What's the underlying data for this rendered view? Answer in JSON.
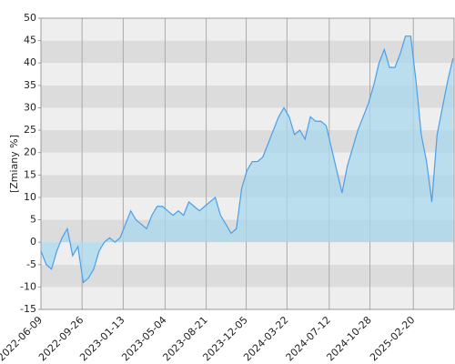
{
  "chart_data": {
    "type": "area",
    "y_label": "[Zmiany %]",
    "x": [
      "2022-06-09",
      "2022-06-23",
      "2022-07-07",
      "2022-07-21",
      "2022-08-04",
      "2022-08-18",
      "2022-09-01",
      "2022-09-15",
      "2022-09-29",
      "2022-10-13",
      "2022-10-27",
      "2022-11-10",
      "2022-11-24",
      "2022-12-08",
      "2022-12-22",
      "2023-01-05",
      "2023-01-19",
      "2023-02-02",
      "2023-02-16",
      "2023-03-02",
      "2023-03-16",
      "2023-03-30",
      "2023-04-13",
      "2023-04-27",
      "2023-05-11",
      "2023-05-25",
      "2023-06-08",
      "2023-06-22",
      "2023-07-06",
      "2023-07-20",
      "2023-08-03",
      "2023-08-17",
      "2023-08-31",
      "2023-09-14",
      "2023-09-28",
      "2023-10-12",
      "2023-10-26",
      "2023-11-09",
      "2023-11-23",
      "2023-12-07",
      "2023-12-21",
      "2024-01-04",
      "2024-01-18",
      "2024-02-01",
      "2024-02-15",
      "2024-02-29",
      "2024-03-14",
      "2024-03-28",
      "2024-04-11",
      "2024-04-25",
      "2024-05-09",
      "2024-05-23",
      "2024-06-06",
      "2024-06-20",
      "2024-07-04",
      "2024-07-18",
      "2024-08-01",
      "2024-08-15",
      "2024-08-29",
      "2024-09-12",
      "2024-09-26",
      "2024-10-10",
      "2024-10-24",
      "2024-11-07",
      "2024-11-21",
      "2024-12-05",
      "2024-12-19",
      "2025-01-02",
      "2025-01-16",
      "2025-01-30",
      "2025-02-13",
      "2025-02-27",
      "2025-03-13",
      "2025-03-27",
      "2025-04-10",
      "2025-04-24",
      "2025-05-08",
      "2025-05-22",
      "2025-06-05"
    ],
    "values": [
      -2,
      -5,
      -6,
      -2,
      1,
      3,
      -3,
      -1,
      -9,
      -8,
      -6,
      -2,
      0,
      1,
      0,
      1,
      4,
      7,
      5,
      4,
      3,
      6,
      8,
      8,
      7,
      6,
      7,
      6,
      9,
      8,
      7,
      8,
      9,
      10,
      6,
      4,
      2,
      3,
      12,
      16,
      18,
      18,
      19,
      22,
      25,
      28,
      30,
      28,
      24,
      25,
      23,
      28,
      27,
      27,
      26,
      21,
      16,
      11,
      17,
      21,
      25,
      28,
      31,
      35,
      40,
      43,
      39,
      39,
      42,
      46,
      46,
      36,
      24,
      18,
      9,
      24,
      30,
      36,
      41
    ],
    "line_color": "#4a9fe8",
    "fill_color": "#a8d8ee",
    "xlim": [
      "2022-06-09",
      "2025-06-08"
    ],
    "xticks": [
      "2022-06-09",
      "2022-09-26",
      "2023-01-13",
      "2023-05-04",
      "2023-08-21",
      "2023-12-05",
      "2024-03-22",
      "2024-07-12",
      "2024-10-28",
      "2025-02-20"
    ],
    "ylim": [
      -15,
      50
    ],
    "yticks": [
      -15,
      -10,
      -5,
      0,
      5,
      10,
      15,
      20,
      25,
      30,
      35,
      40,
      45,
      50
    ],
    "band_colors": [
      "#eeeeee",
      "#dcdcdc"
    ],
    "grid": true
  }
}
